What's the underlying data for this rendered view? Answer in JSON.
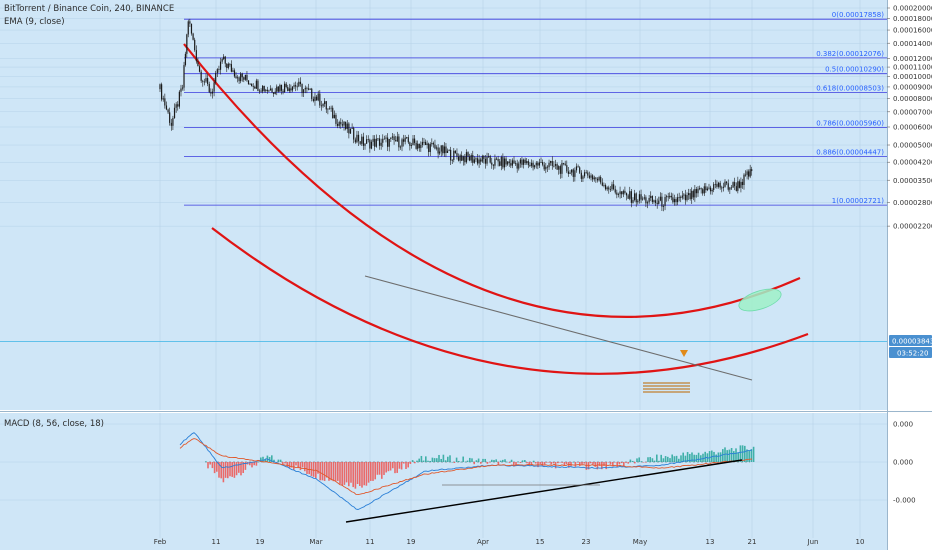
{
  "header": {
    "symbol_line": "BitTorrent / Binance Coin, 240, BINANCE",
    "ema_label": "EMA (9, close)",
    "macd_label": "MACD (8, 56, close, 18)"
  },
  "price_badge": {
    "price": "0.00003843",
    "countdown": "03:52:20"
  },
  "colors": {
    "background": "#cfe6f7",
    "candle": "#1a1a1a",
    "fib_line": "#3a3adf",
    "fib_text": "#2962ff",
    "red_arc": "#e01414",
    "trend_gray": "#6d6d6d",
    "macd_line": "#2a7fd6",
    "signal_line": "#e05a2e",
    "hist_pos": "#26a69a",
    "hist_neg": "#ef5350",
    "ellipse": "#9ff0c8",
    "price_line": "#3cb4e6",
    "badge": "#4a90d0",
    "arrow": "#e08a1a",
    "bars_marker": "#c08030"
  },
  "chart_data": {
    "type": "candlestick",
    "price_axis": {
      "ticks": [
        "0.00020000",
        "0.00018000",
        "0.00016000",
        "0.00014000",
        "0.00012000",
        "0.00011000",
        "0.00010000",
        "0.00009000",
        "0.00008000",
        "0.00007000",
        "0.00006000",
        "0.00005000",
        "0.00004200",
        "0.00003500",
        "0.00002800",
        "0.00002200"
      ],
      "scale": "log"
    },
    "x_labels": [
      "Feb",
      "11",
      "19",
      "Mar",
      "11",
      "19",
      "Apr",
      "15",
      "23",
      "May",
      "13",
      "21",
      "Jun",
      "10"
    ],
    "fib_levels": [
      {
        "label": "0(0.00017858)",
        "value": 0.00017858
      },
      {
        "label": "0.382(0.00012076)",
        "value": 0.00012076
      },
      {
        "label": "0.5(0.00010290)",
        "value": 0.0001029
      },
      {
        "label": "0.618(0.00008503)",
        "value": 8.503e-05
      },
      {
        "label": "0.786(0.00005960)",
        "value": 5.96e-05
      },
      {
        "label": "0.886(0.00004447)",
        "value": 4.447e-05
      },
      {
        "label": "1(0.00002721)",
        "value": 2.721e-05
      }
    ],
    "price_series_approx": [
      {
        "x": "Feb 1",
        "close": 8.8e-05
      },
      {
        "x": "Feb 3",
        "close": 6.2e-05
      },
      {
        "x": "Feb 5",
        "close": 9e-05
      },
      {
        "x": "Feb 6",
        "close": 0.00017858
      },
      {
        "x": "Feb 8",
        "close": 0.000105
      },
      {
        "x": "Feb 10",
        "close": 8.5e-05
      },
      {
        "x": "Feb 12",
        "close": 0.000118
      },
      {
        "x": "Feb 15",
        "close": 0.0001
      },
      {
        "x": "Feb 20",
        "close": 8.8e-05
      },
      {
        "x": "Feb 25",
        "close": 9.2e-05
      },
      {
        "x": "Mar 1",
        "close": 8e-05
      },
      {
        "x": "Mar 5",
        "close": 6.2e-05
      },
      {
        "x": "Mar 9",
        "close": 5.1e-05
      },
      {
        "x": "Mar 15",
        "close": 5.2e-05
      },
      {
        "x": "Mar 20",
        "close": 5e-05
      },
      {
        "x": "Mar 25",
        "close": 4.5e-05
      },
      {
        "x": "Apr 1",
        "close": 4.2e-05
      },
      {
        "x": "Apr 10",
        "close": 4.1e-05
      },
      {
        "x": "Apr 18",
        "close": 3.7e-05
      },
      {
        "x": "Apr 24",
        "close": 3e-05
      },
      {
        "x": "Apr 30",
        "close": 2.8e-05
      },
      {
        "x": "May 5",
        "close": 2.9e-05
      },
      {
        "x": "May 10",
        "close": 3.3e-05
      },
      {
        "x": "May 14",
        "close": 3.3e-05
      },
      {
        "x": "May 17",
        "close": 3.843e-05
      }
    ],
    "macd_axis": {
      "ticks": [
        "0.000",
        "0.000",
        "-0.000"
      ]
    },
    "macd_approx": [
      {
        "x": "Feb 1",
        "macd": 0.0,
        "signal": 0.0
      },
      {
        "x": "Feb 7",
        "macd": 1.0,
        "signal": 0.8
      },
      {
        "x": "Feb 12",
        "macd": -0.2,
        "signal": 0.2
      },
      {
        "x": "Feb 20",
        "macd": 0.1,
        "signal": 0.0
      },
      {
        "x": "Mar 1",
        "macd": -0.6,
        "signal": -0.3
      },
      {
        "x": "Mar 8",
        "macd": -1.6,
        "signal": -1.1
      },
      {
        "x": "Mar 20",
        "macd": -0.3,
        "signal": -0.4
      },
      {
        "x": "Apr 1",
        "macd": -0.1,
        "signal": -0.1
      },
      {
        "x": "Apr 20",
        "macd": -0.2,
        "signal": -0.1
      },
      {
        "x": "May 1",
        "macd": -0.1,
        "signal": -0.2
      },
      {
        "x": "May 17",
        "macd": 0.4,
        "signal": 0.1
      }
    ],
    "annotations": [
      "descending curved channel",
      "rounding bottom arc",
      "fibonacci retracement",
      "target ellipse",
      "bullish divergence trendline on MACD"
    ]
  }
}
